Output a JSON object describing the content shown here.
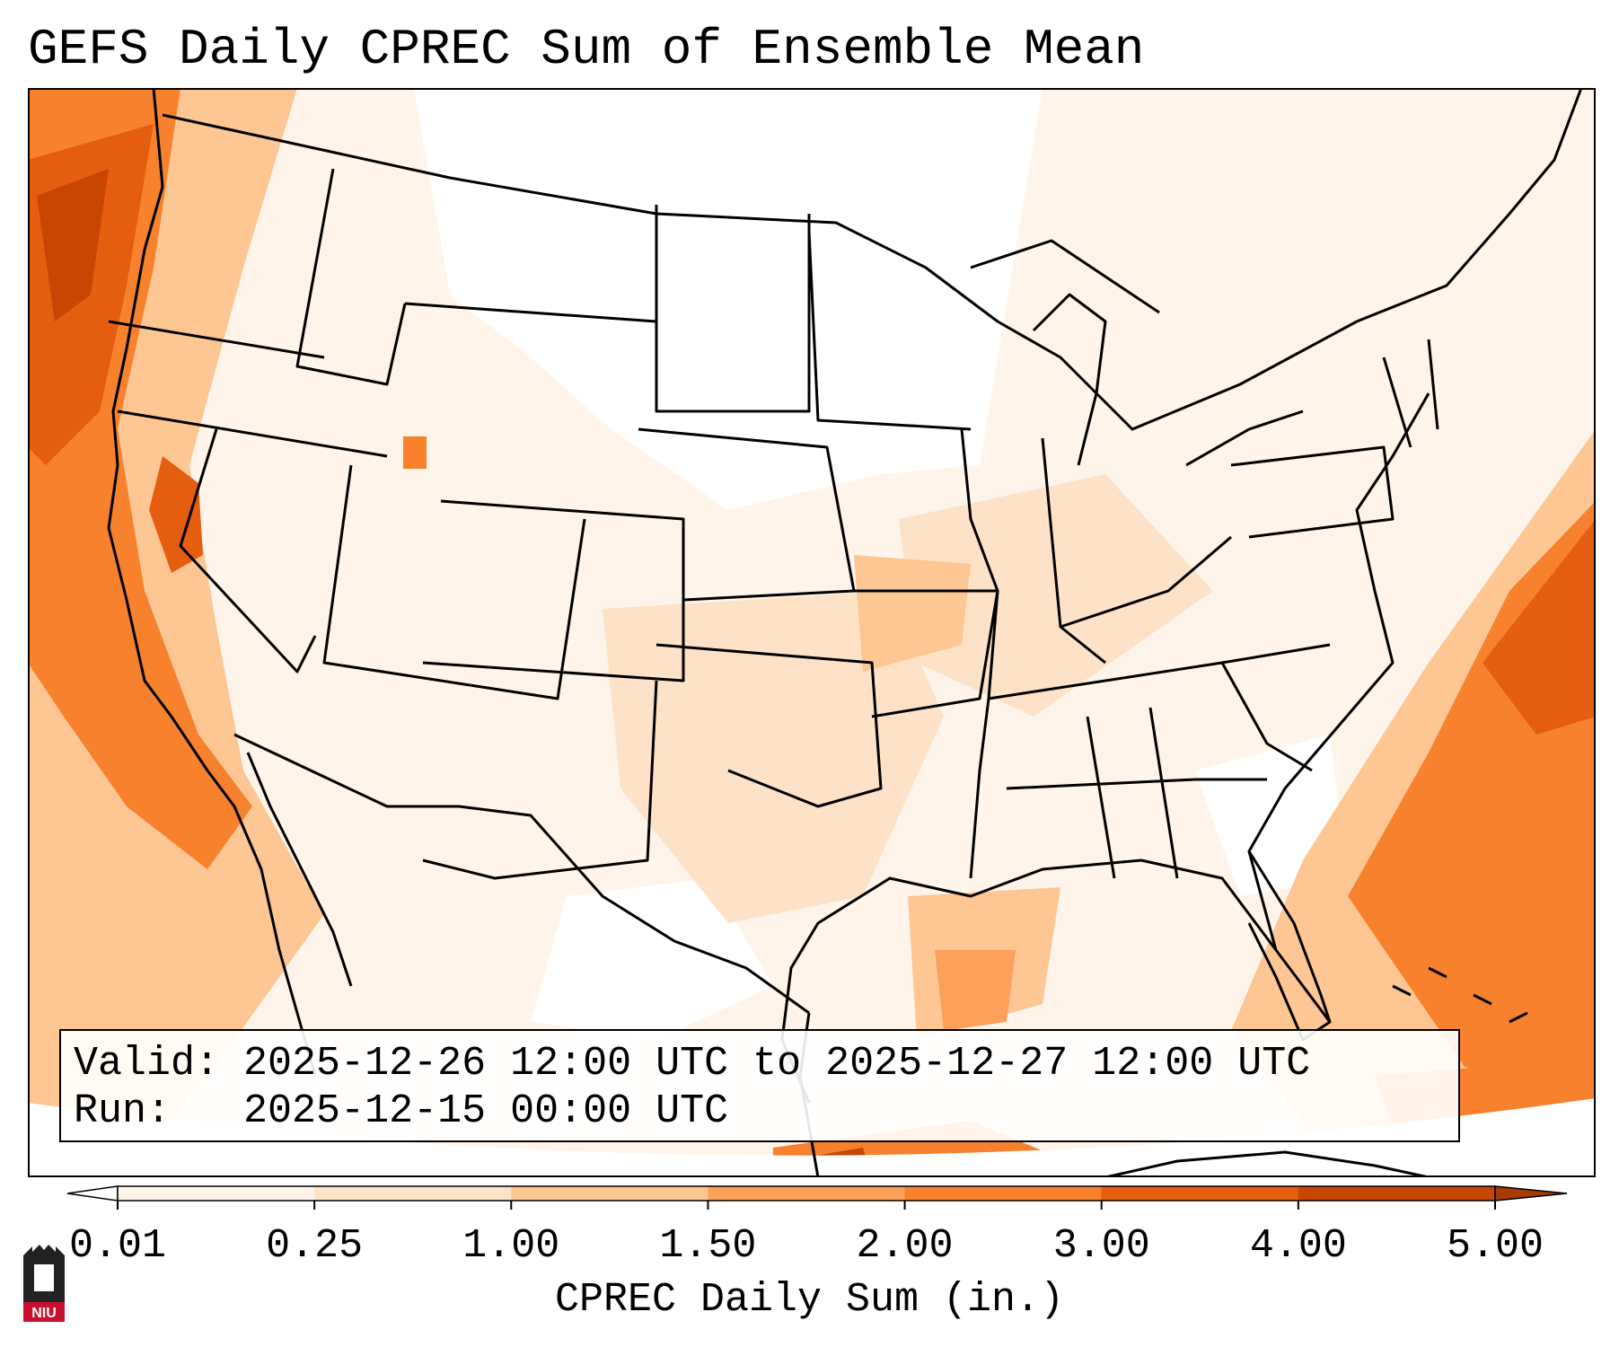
{
  "title": "GEFS Daily CPREC Sum of Ensemble Mean",
  "info_box": {
    "valid_label": "Valid:",
    "valid_value": "2025-12-26 12:00 UTC to 2025-12-27 12:00 UTC",
    "run_label": "Run:",
    "run_value": "2025-12-15 00:00 UTC"
  },
  "colorbar": {
    "label": "CPREC Daily Sum (in.)",
    "ticks": [
      "0.01",
      "0.25",
      "1.00",
      "1.50",
      "2.00",
      "3.00",
      "4.00",
      "5.00"
    ],
    "colors": [
      "#fff4e9",
      "#fee2c7",
      "#fdc693",
      "#fda05a",
      "#f7812d",
      "#e55d0f",
      "#c84504"
    ],
    "extend": "both"
  },
  "logo": {
    "text": "NIU",
    "color": "#c8102e"
  },
  "map": {
    "projection": "Lambert conformal, CONUS",
    "features": [
      "state-borders",
      "country-borders",
      "coastlines",
      "lakes"
    ],
    "shading_palette": {
      "light": "#fff4e9",
      "low": "#fee2c7",
      "mid": "#fdc693",
      "high": "#fda05a",
      "higher": "#f7812d",
      "max": "#e55d0f",
      "extreme": "#c84504"
    }
  }
}
